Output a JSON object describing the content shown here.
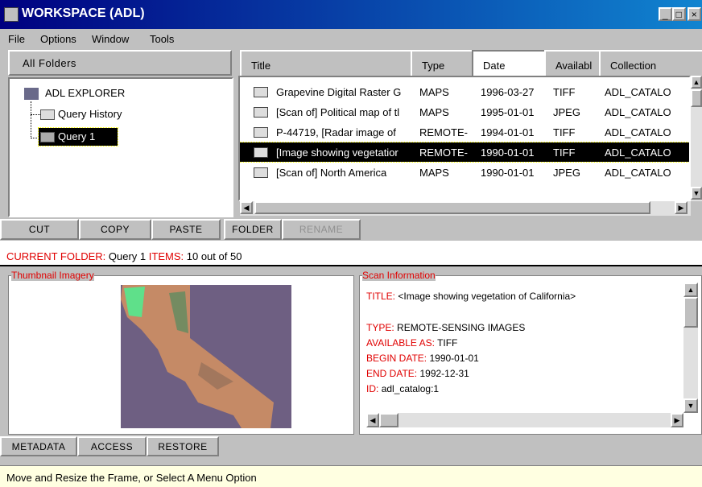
{
  "window": {
    "title": "WORKSPACE (ADL)"
  },
  "menu": [
    "File",
    "Options",
    "Window",
    "Tools"
  ],
  "folders": {
    "header": "All Folders",
    "root": "ADL EXPLORER",
    "items": [
      "Query History",
      "Query 1"
    ]
  },
  "table": {
    "columns": [
      "Title",
      "Type",
      "Date",
      "Availabl",
      "Collection"
    ],
    "rows": [
      [
        "Grapevine Digital Raster G",
        "MAPS",
        "1996-03-27",
        "TIFF",
        "ADL_CATALO"
      ],
      [
        "[Scan of] Political map of tl",
        "MAPS",
        "1995-01-01",
        "JPEG",
        "ADL_CATALO"
      ],
      [
        "P-44719, [Radar image of",
        "REMOTE-",
        "1994-01-01",
        "TIFF",
        "ADL_CATALO"
      ],
      [
        "[Image showing vegetatior",
        "REMOTE-",
        "1990-01-01",
        "TIFF",
        "ADL_CATALO"
      ],
      [
        "[Scan of] North America",
        "MAPS",
        "1990-01-01",
        "JPEG",
        "ADL_CATALO"
      ]
    ]
  },
  "actions": [
    "CUT",
    "COPY",
    "PASTE",
    "FOLDER",
    "RENAME"
  ],
  "current": {
    "folder_label": "CURRENT FOLDER:",
    "folder": "Query 1",
    "items_label": "ITEMS:",
    "items": "10 out of 50"
  },
  "thumbnail": {
    "title": "Thumbnail Imagery"
  },
  "scan_info": {
    "title": "Scan Information",
    "fields": [
      {
        "label": "TITLE:",
        "value": "<Image showing vegetation of California>"
      },
      {
        "label": "TYPE:",
        "value": "REMOTE-SENSING IMAGES"
      },
      {
        "label": "AVAILABLE AS:",
        "value": "TIFF"
      },
      {
        "label": "BEGIN DATE:",
        "value": "1990-01-01"
      },
      {
        "label": "END DATE:",
        "value": "1992-12-31"
      },
      {
        "label": "ID:",
        "value": "adl_catalog:1"
      }
    ]
  },
  "bottom_actions": [
    "METADATA",
    "ACCESS",
    "RESTORE"
  ],
  "status": "Move and Resize the Frame, or Select A Menu Option"
}
